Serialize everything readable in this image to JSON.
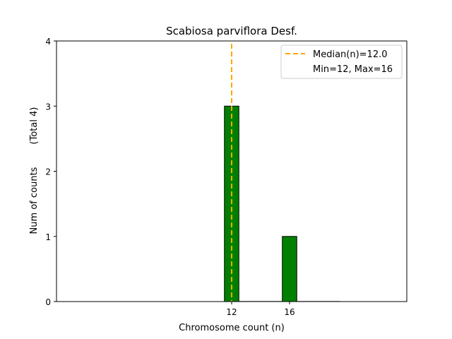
{
  "chart_data": {
    "type": "bar",
    "title": "Scabiosa parviflora Desf.",
    "xlabel": "Chromosome count (n)",
    "ylabel": "Num of counts",
    "ylabel_extra": "(Total 4)",
    "xlim": [
      -0.1,
      24.1
    ],
    "ylim": [
      0,
      4
    ],
    "x_ticks": [
      12,
      16
    ],
    "y_ticks": [
      0,
      1,
      2,
      3,
      4
    ],
    "bars": [
      {
        "x": 12,
        "value": 3,
        "width": 1
      },
      {
        "x": 16,
        "value": 1,
        "width": 1
      }
    ],
    "zero_bins_range": [
      11.5,
      19.5
    ],
    "bar_color": "#008000",
    "median": {
      "value": 12.0,
      "color": "#ffa500"
    },
    "legend": {
      "placement": "top-right",
      "entries": [
        "Median(n)=12.0",
        "Min=12, Max=16"
      ]
    },
    "grid": false
  }
}
